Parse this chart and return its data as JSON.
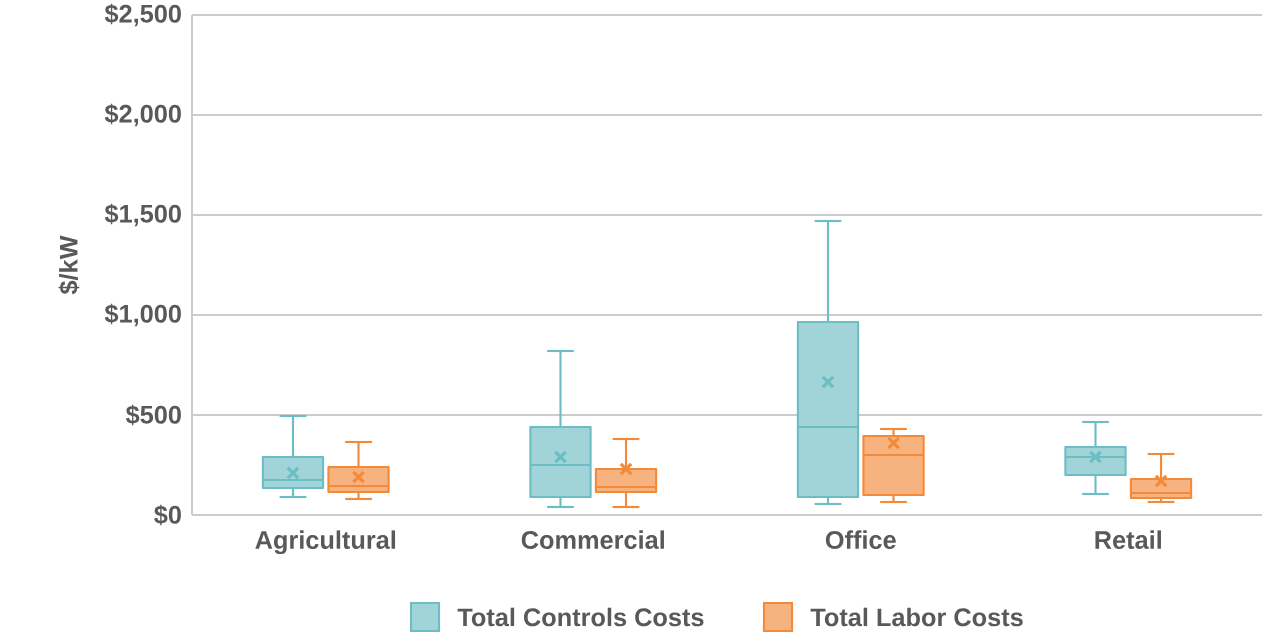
{
  "chart_data": {
    "type": "box",
    "ylabel": "$/kW",
    "categories": [
      "Agricultural",
      "Commercial",
      "Office",
      "Retail"
    ],
    "ylim": [
      0,
      2500
    ],
    "yticks": [
      {
        "value": 0,
        "label": "$0"
      },
      {
        "value": 500,
        "label": "$500"
      },
      {
        "value": 1000,
        "label": "$1,000"
      },
      {
        "value": 1500,
        "label": "$1,500"
      },
      {
        "value": 2000,
        "label": "$2,000"
      },
      {
        "value": 2500,
        "label": "$2,500"
      }
    ],
    "grid": "y",
    "legend": "bottom",
    "marker": "cross",
    "series": [
      {
        "name": "Total Controls Costs",
        "color": "#6dbdc4",
        "boxes": [
          {
            "low": 90,
            "q1": 135,
            "median": 175,
            "q3": 290,
            "high": 495,
            "mean": 210
          },
          {
            "low": 40,
            "q1": 90,
            "median": 250,
            "q3": 440,
            "high": 820,
            "mean": 290
          },
          {
            "low": 55,
            "q1": 90,
            "median": 440,
            "q3": 965,
            "high": 1470,
            "mean": 665
          },
          {
            "low": 105,
            "q1": 200,
            "median": 290,
            "q3": 340,
            "high": 465,
            "mean": 290
          }
        ]
      },
      {
        "name": "Total Labor Costs",
        "color": "#f38a3a",
        "boxes": [
          {
            "low": 80,
            "q1": 115,
            "median": 145,
            "q3": 240,
            "high": 365,
            "mean": 190
          },
          {
            "low": 40,
            "q1": 115,
            "median": 140,
            "q3": 230,
            "high": 380,
            "mean": 230
          },
          {
            "low": 65,
            "q1": 100,
            "median": 300,
            "q3": 395,
            "high": 430,
            "mean": 360
          },
          {
            "low": 65,
            "q1": 85,
            "median": 110,
            "q3": 180,
            "high": 305,
            "mean": 170
          }
        ]
      }
    ]
  }
}
